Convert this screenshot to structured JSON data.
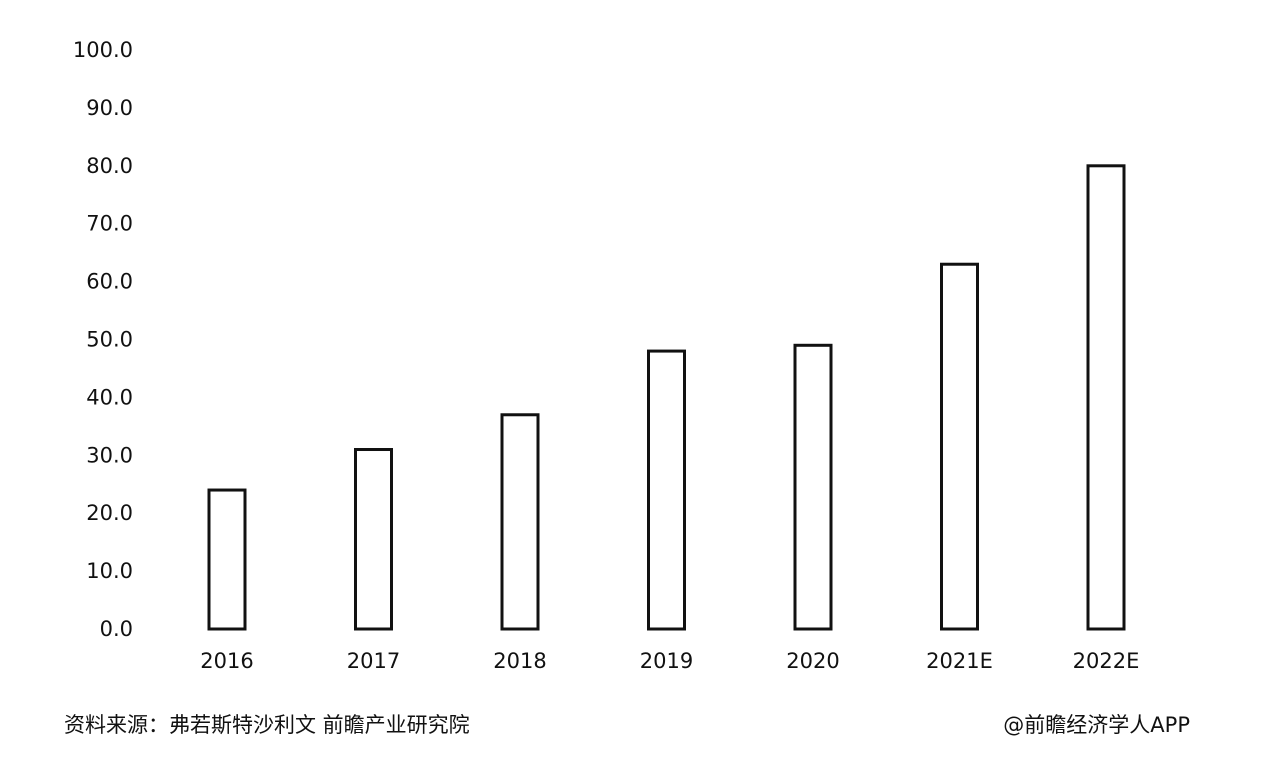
{
  "chart_data": {
    "type": "bar",
    "categories": [
      "2016",
      "2017",
      "2018",
      "2019",
      "2020",
      "2021E",
      "2022E"
    ],
    "values": [
      24.0,
      31.0,
      37.0,
      48.0,
      49.0,
      63.0,
      80.0
    ],
    "y_ticks": [
      "0.0",
      "10.0",
      "20.0",
      "30.0",
      "40.0",
      "50.0",
      "60.0",
      "70.0",
      "80.0",
      "90.0",
      "100.0"
    ],
    "ylim": [
      0,
      100
    ],
    "grid": false,
    "bar_fill": "#ffffff",
    "bar_stroke": "#111111"
  },
  "footer": {
    "source": "资料来源：弗若斯特沙利文 前瞻产业研究院",
    "credit": "@前瞻经济学人APP"
  }
}
